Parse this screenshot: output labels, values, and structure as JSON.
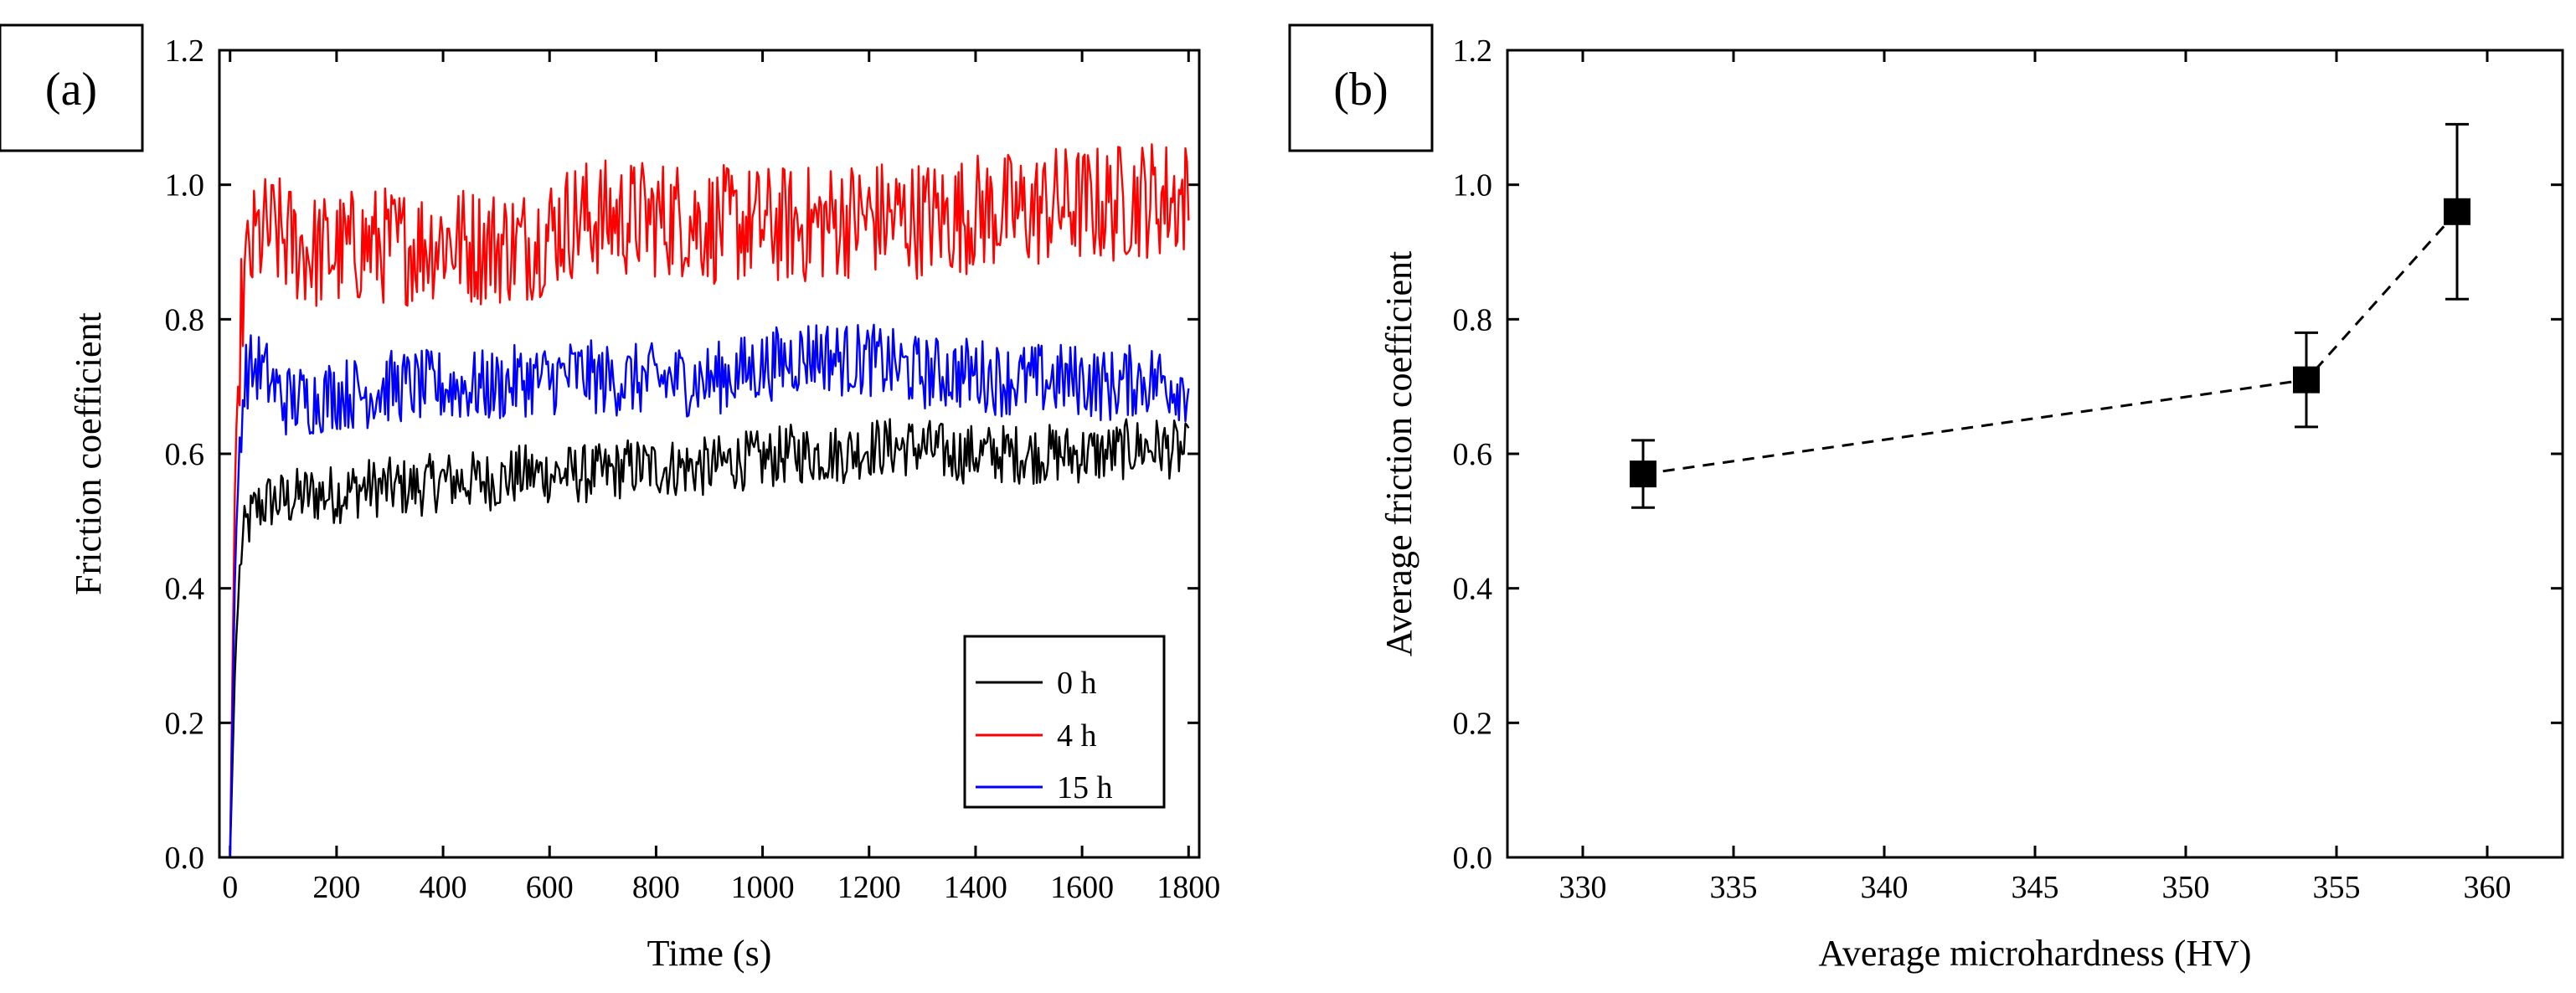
{
  "chart_data": [
    {
      "panel_label": "(a)",
      "type": "line",
      "title": "",
      "xlabel": "Time (s)",
      "ylabel": "Friction coefficient",
      "xlim": [
        -20,
        1820
      ],
      "ylim": [
        0.0,
        1.2
      ],
      "xticks": [
        "0",
        "200",
        "400",
        "600",
        "800",
        "1000",
        "1200",
        "1400",
        "1600",
        "1800"
      ],
      "yticks": [
        "0.0",
        "0.2",
        "0.4",
        "0.6",
        "0.8",
        "1.0",
        "1.2"
      ],
      "legend_position": "bottom-right",
      "series": [
        {
          "name": "0 h",
          "color": "#000000",
          "x": [
            0,
            10,
            20,
            30,
            50,
            75,
            100,
            150,
            200,
            250,
            300,
            350,
            400,
            450,
            500,
            550,
            600,
            650,
            700,
            750,
            800,
            850,
            900,
            950,
            1000,
            1050,
            1100,
            1150,
            1200,
            1250,
            1300,
            1350,
            1400,
            1450,
            1500,
            1550,
            1600,
            1650,
            1700,
            1750,
            1800
          ],
          "values": [
            0.0,
            0.3,
            0.45,
            0.49,
            0.52,
            0.53,
            0.53,
            0.54,
            0.54,
            0.55,
            0.55,
            0.55,
            0.56,
            0.56,
            0.56,
            0.57,
            0.57,
            0.57,
            0.57,
            0.58,
            0.58,
            0.58,
            0.58,
            0.59,
            0.59,
            0.6,
            0.6,
            0.6,
            0.61,
            0.61,
            0.61,
            0.6,
            0.6,
            0.6,
            0.6,
            0.6,
            0.6,
            0.6,
            0.61,
            0.61,
            0.6
          ]
        },
        {
          "name": "4 h",
          "color": "#ff0000",
          "x": [
            0,
            10,
            20,
            30,
            50,
            75,
            100,
            150,
            200,
            250,
            300,
            350,
            400,
            450,
            500,
            550,
            600,
            650,
            700,
            750,
            800,
            850,
            900,
            950,
            1000,
            1050,
            1100,
            1150,
            1200,
            1250,
            1300,
            1350,
            1400,
            1450,
            1500,
            1550,
            1600,
            1650,
            1700,
            1750,
            1800
          ],
          "values": [
            0.0,
            0.6,
            0.8,
            0.87,
            0.92,
            0.93,
            0.92,
            0.9,
            0.9,
            0.91,
            0.91,
            0.91,
            0.92,
            0.91,
            0.91,
            0.91,
            0.93,
            0.95,
            0.95,
            0.95,
            0.95,
            0.95,
            0.94,
            0.94,
            0.94,
            0.94,
            0.94,
            0.95,
            0.95,
            0.95,
            0.95,
            0.95,
            0.96,
            0.96,
            0.96,
            0.97,
            0.97,
            0.97,
            0.98,
            0.98,
            0.98
          ]
        },
        {
          "name": "15 h",
          "color": "#0000ff",
          "x": [
            0,
            10,
            20,
            30,
            50,
            75,
            100,
            150,
            200,
            250,
            300,
            350,
            400,
            450,
            500,
            550,
            600,
            650,
            700,
            750,
            800,
            850,
            900,
            950,
            1000,
            1050,
            1100,
            1150,
            1200,
            1250,
            1300,
            1350,
            1400,
            1450,
            1500,
            1550,
            1600,
            1650,
            1700,
            1750,
            1800
          ],
          "values": [
            0.0,
            0.45,
            0.65,
            0.72,
            0.73,
            0.71,
            0.68,
            0.68,
            0.69,
            0.69,
            0.7,
            0.7,
            0.7,
            0.7,
            0.7,
            0.71,
            0.71,
            0.72,
            0.71,
            0.71,
            0.71,
            0.71,
            0.71,
            0.72,
            0.73,
            0.74,
            0.75,
            0.74,
            0.74,
            0.73,
            0.72,
            0.72,
            0.72,
            0.71,
            0.71,
            0.71,
            0.71,
            0.7,
            0.71,
            0.71,
            0.7
          ]
        }
      ]
    },
    {
      "panel_label": "(b)",
      "type": "scatter",
      "title": "",
      "xlabel": "Average microhardness (HV)",
      "ylabel": "Average friction coefficient",
      "xlim": [
        327.5,
        362.5
      ],
      "ylim": [
        0.0,
        1.2
      ],
      "xticks": [
        "330",
        "335",
        "340",
        "345",
        "350",
        "355",
        "360"
      ],
      "yticks": [
        "0.0",
        "0.2",
        "0.4",
        "0.6",
        "0.8",
        "1.0",
        "1.2"
      ],
      "grid": false,
      "series": [
        {
          "name": "Average friction coefficient",
          "color": "#000000",
          "x": [
            332,
            354,
            359
          ],
          "values": [
            0.57,
            0.71,
            0.96
          ],
          "errors": [
            0.05,
            0.07,
            0.13
          ]
        }
      ]
    }
  ]
}
